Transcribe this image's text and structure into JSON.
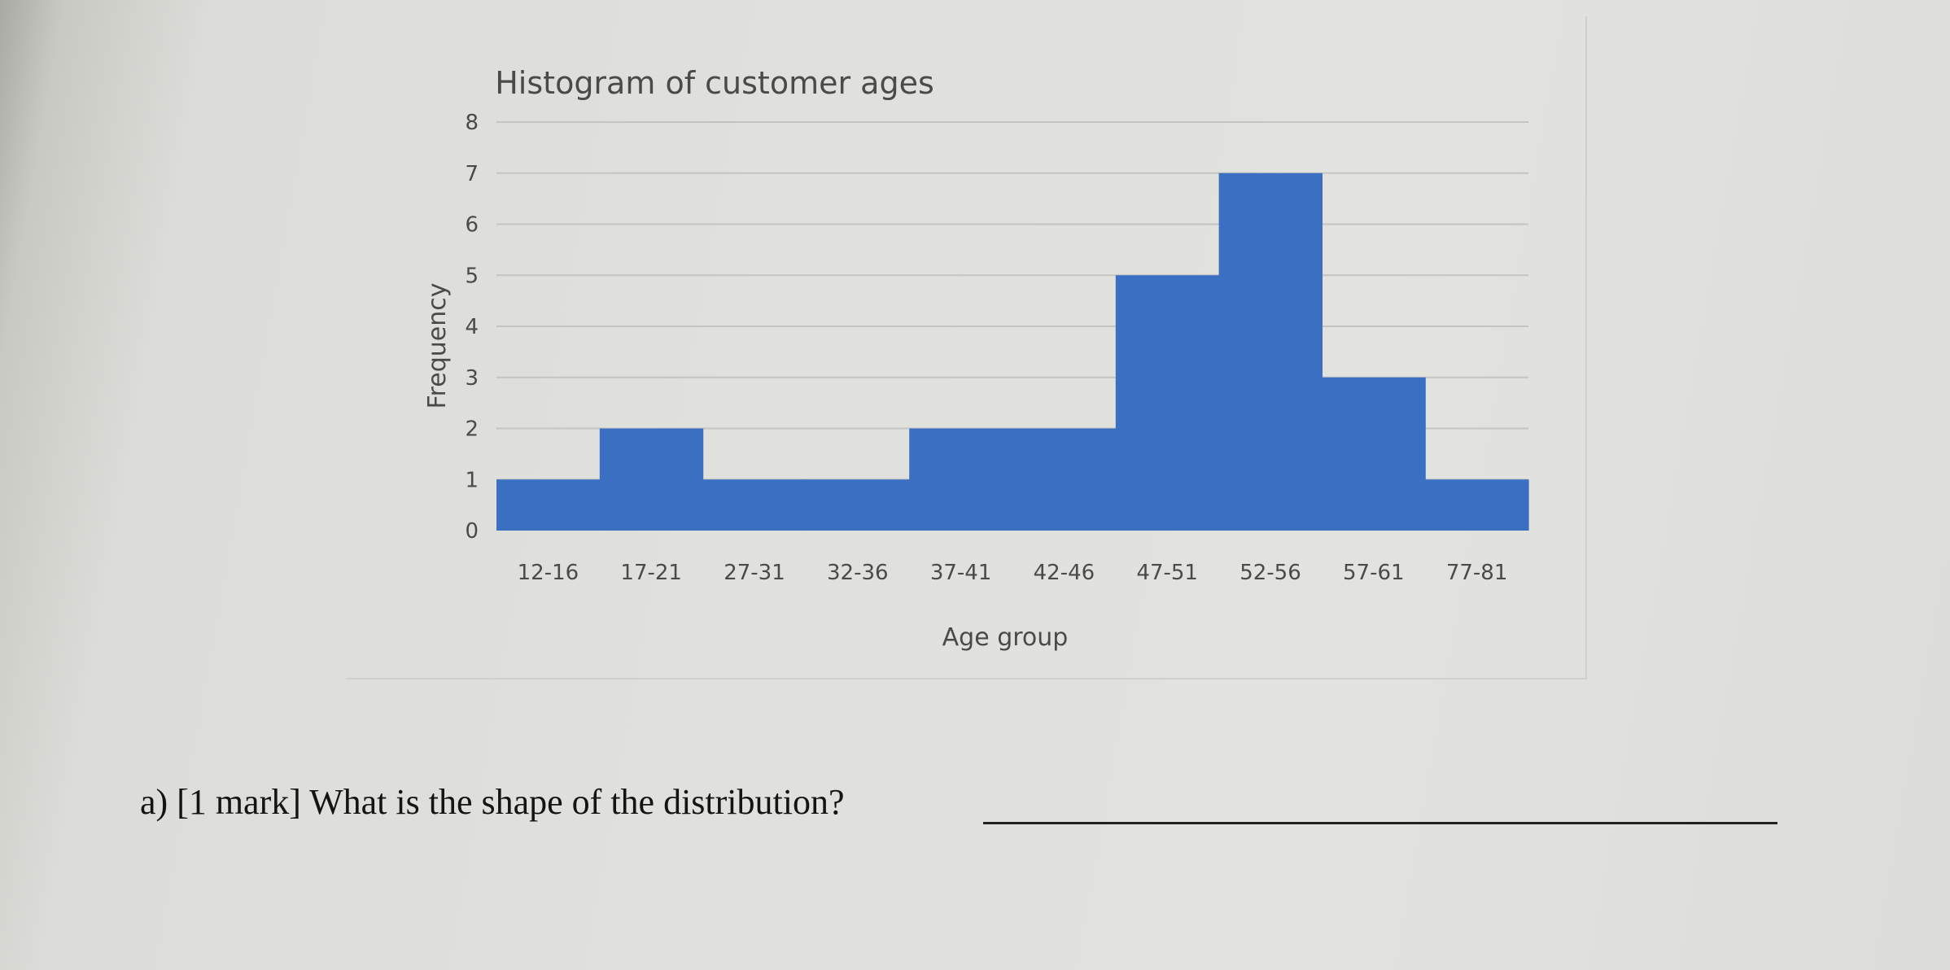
{
  "question": {
    "text": "a) [1 mark] What is the shape of the distribution?"
  },
  "chart_data": {
    "type": "bar",
    "title": "Histogram of customer ages",
    "xlabel": "Age group",
    "ylabel": "Frequency",
    "categories": [
      "12-16",
      "17-21",
      "27-31",
      "32-36",
      "37-41",
      "42-46",
      "47-51",
      "52-56",
      "57-61",
      "77-81"
    ],
    "values": [
      1,
      2,
      1,
      1,
      2,
      2,
      5,
      7,
      3,
      1
    ],
    "yticks": [
      0,
      1,
      2,
      3,
      4,
      5,
      6,
      7,
      8
    ],
    "ylim": [
      0,
      8
    ],
    "grid": true,
    "bar_gap": 0,
    "colors": {
      "bar": "#3a6fc2",
      "grid": "#c4c4c0",
      "text": "#4a4a4a"
    }
  }
}
